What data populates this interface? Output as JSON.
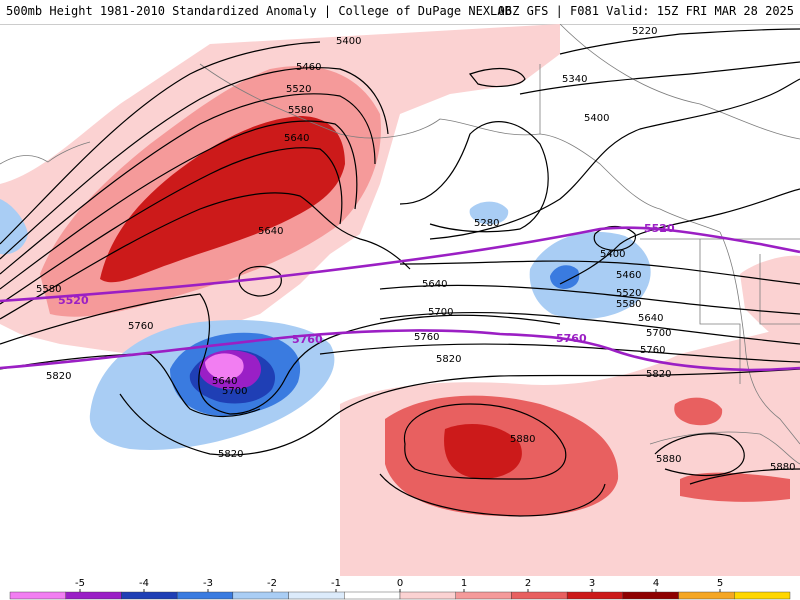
{
  "header": {
    "title_left": "500mb Height 1981-2010 Standardized Anomaly | College of DuPage NEXLAB",
    "title_right": "06Z GFS | F081 Valid: 15Z FRI MAR 28 2025"
  },
  "contours": {
    "black_labels": [
      "5400",
      "5460",
      "5520",
      "5580",
      "5640",
      "5640",
      "5580",
      "5760",
      "5820",
      "5640",
      "5700",
      "5820",
      "5220",
      "5340",
      "5400",
      "5280",
      "5400",
      "5460",
      "5520",
      "5580",
      "5640",
      "5640",
      "5700",
      "5700",
      "5760",
      "5760",
      "5820",
      "5820",
      "5880",
      "5880",
      "5880"
    ],
    "purple_labels": [
      "5520",
      "5520",
      "5760",
      "5760"
    ]
  },
  "legend": {
    "ticks": [
      "-5",
      "-4",
      "-3",
      "-2",
      "-1",
      "0",
      "1",
      "2",
      "3",
      "4",
      "5"
    ],
    "colors": [
      "#f27ef2",
      "#9a1fc6",
      "#1f3fb5",
      "#3a7be0",
      "#a9cdf4",
      "#dcebfb",
      "#ffffff",
      "#fbd2d2",
      "#f59a9a",
      "#e86060",
      "#cc1a1a",
      "#8e0000",
      "#f5a623",
      "#ffd700"
    ]
  }
}
